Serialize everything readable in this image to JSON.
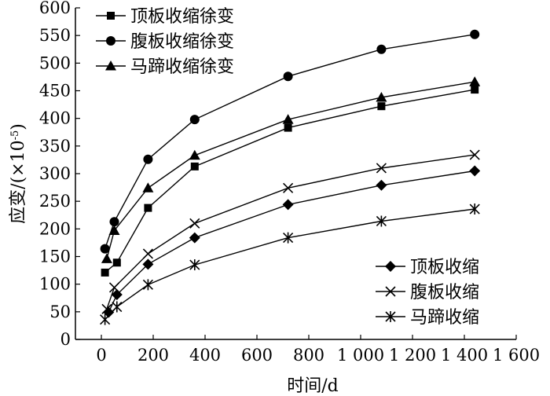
{
  "chart_data": {
    "type": "line",
    "xlabel": "时间/d",
    "ylabel": "应变/(×10",
    "ylabel_exponent": "-5",
    "ylabel_close": ")",
    "xlim": [
      -100,
      1600
    ],
    "ylim": [
      0,
      600
    ],
    "x_ticks": [
      {
        "value": 0,
        "label": "0"
      },
      {
        "value": 200,
        "label": "200"
      },
      {
        "value": 400,
        "label": "400"
      },
      {
        "value": 600,
        "label": "600"
      },
      {
        "value": 800,
        "label": "800"
      },
      {
        "value": 1000,
        "label": "1 000"
      },
      {
        "value": 1200,
        "label": "1 200"
      },
      {
        "value": 1400,
        "label": "1 400"
      },
      {
        "value": 1600,
        "label": "1 600"
      }
    ],
    "y_ticks": [
      0,
      50,
      100,
      150,
      200,
      250,
      300,
      350,
      400,
      450,
      500,
      550,
      600
    ],
    "legends": [
      {
        "position": "top-left",
        "entries": [
          {
            "name": "顶板收缩徐变",
            "marker": "square"
          },
          {
            "name": "腹板收缩徐变",
            "marker": "circle"
          },
          {
            "name": "马蹄收缩徐变",
            "marker": "triangle"
          }
        ]
      },
      {
        "position": "bottom-right",
        "entries": [
          {
            "name": "顶板收缩",
            "marker": "diamond"
          },
          {
            "name": "腹板收缩",
            "marker": "x"
          },
          {
            "name": "马蹄收缩",
            "marker": "star"
          }
        ]
      }
    ],
    "series": [
      {
        "name": "顶板收缩徐变",
        "marker": "square",
        "points": [
          [
            14,
            121
          ],
          [
            60,
            139
          ],
          [
            180,
            238
          ],
          [
            360,
            313
          ],
          [
            720,
            383
          ],
          [
            1080,
            422
          ],
          [
            1440,
            452
          ]
        ]
      },
      {
        "name": "腹板收缩徐变",
        "marker": "circle",
        "points": [
          [
            14,
            164
          ],
          [
            50,
            213
          ],
          [
            180,
            326
          ],
          [
            360,
            398
          ],
          [
            720,
            476
          ],
          [
            1080,
            525
          ],
          [
            1440,
            552
          ]
        ]
      },
      {
        "name": "马蹄收缩徐变",
        "marker": "triangle",
        "points": [
          [
            21,
            146
          ],
          [
            50,
            197
          ],
          [
            180,
            274
          ],
          [
            360,
            333
          ],
          [
            720,
            398
          ],
          [
            1080,
            438
          ],
          [
            1440,
            466
          ]
        ]
      },
      {
        "name": "顶板收缩",
        "marker": "diamond",
        "points": [
          [
            28,
            49
          ],
          [
            60,
            81
          ],
          [
            180,
            136
          ],
          [
            360,
            184
          ],
          [
            720,
            244
          ],
          [
            1080,
            279
          ],
          [
            1440,
            305
          ]
        ]
      },
      {
        "name": "腹板收缩",
        "marker": "x",
        "points": [
          [
            21,
            55
          ],
          [
            50,
            94
          ],
          [
            180,
            155
          ],
          [
            360,
            210
          ],
          [
            720,
            274
          ],
          [
            1080,
            310
          ],
          [
            1440,
            334
          ]
        ]
      },
      {
        "name": "马蹄收缩",
        "marker": "star",
        "points": [
          [
            14,
            36
          ],
          [
            60,
            59
          ],
          [
            180,
            99
          ],
          [
            360,
            135
          ],
          [
            720,
            184
          ],
          [
            1080,
            214
          ],
          [
            1440,
            236
          ]
        ]
      }
    ]
  }
}
